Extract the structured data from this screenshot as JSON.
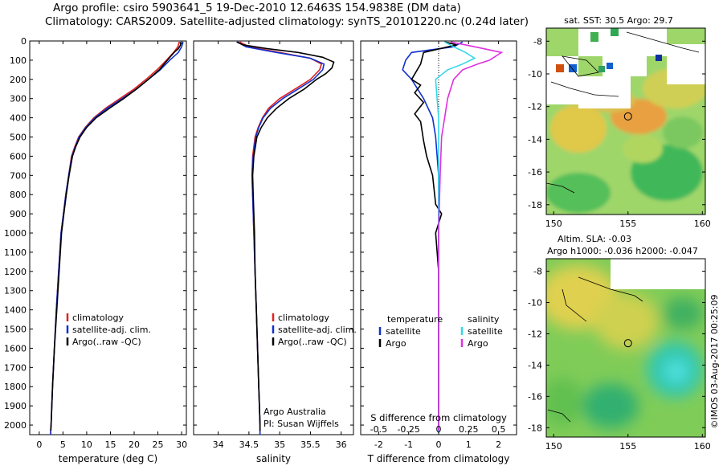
{
  "title": {
    "line1": "Argo profile: csiro 5903641_5 19-Dec-2010 12.6463S 154.9838E (DM data)",
    "line2": "Climatology: CARS2009. Satellite-adjusted climatology: synTS_20101220.nc (0.24d later)"
  },
  "colors": {
    "climatology": "#e02020",
    "satellite": "#1030d0",
    "argo": "#000000",
    "sal_satellite": "#30d8e8",
    "sal_argo": "#e030e0"
  },
  "chart_data": [
    {
      "type": "line",
      "name": "temperature",
      "xlabel": "temperature (deg C)",
      "ylabel": "",
      "xlim": [
        -2,
        31
      ],
      "ylim": [
        2050,
        0
      ],
      "xticks": [
        "0",
        "5",
        "10",
        "15",
        "20",
        "25",
        "30"
      ],
      "yticks": [
        "0",
        "100",
        "200",
        "300",
        "400",
        "500",
        "600",
        "700",
        "800",
        "900",
        "1000",
        "1100",
        "1200",
        "1300",
        "1400",
        "1500",
        "1600",
        "1700",
        "1800",
        "1900",
        "2000"
      ],
      "legend": [
        "climatology",
        "satellite-adj. clim.",
        "Argo(..raw -QC)"
      ],
      "series": [
        {
          "name": "climatology",
          "color": "climatology",
          "points": [
            [
              29.5,
              5
            ],
            [
              29.2,
              30
            ],
            [
              28.3,
              60
            ],
            [
              26.8,
              100
            ],
            [
              24.8,
              150
            ],
            [
              22.5,
              200
            ],
            [
              20,
              250
            ],
            [
              17,
              300
            ],
            [
              14,
              350
            ],
            [
              11.5,
              400
            ],
            [
              9.7,
              450
            ],
            [
              8.3,
              500
            ],
            [
              7.5,
              550
            ],
            [
              6.8,
              600
            ],
            [
              6.2,
              700
            ],
            [
              5.6,
              800
            ],
            [
              5.1,
              900
            ],
            [
              4.6,
              1000
            ],
            [
              4.1,
              1200
            ],
            [
              3.6,
              1400
            ],
            [
              3.2,
              1600
            ],
            [
              2.8,
              1800
            ],
            [
              2.5,
              2000
            ],
            [
              2.4,
              2050
            ]
          ]
        },
        {
          "name": "satellite-adj. clim.",
          "color": "satellite",
          "points": [
            [
              30.3,
              5
            ],
            [
              30,
              30
            ],
            [
              29.3,
              60
            ],
            [
              27.5,
              100
            ],
            [
              25.5,
              150
            ],
            [
              23,
              200
            ],
            [
              20.5,
              250
            ],
            [
              17.5,
              300
            ],
            [
              14.3,
              350
            ],
            [
              11.7,
              400
            ],
            [
              9.8,
              450
            ],
            [
              8.4,
              500
            ],
            [
              7.6,
              550
            ],
            [
              6.9,
              600
            ],
            [
              6.2,
              700
            ],
            [
              5.6,
              800
            ],
            [
              5.1,
              900
            ],
            [
              4.6,
              1000
            ],
            [
              4.1,
              1200
            ],
            [
              3.6,
              1400
            ],
            [
              3.2,
              1600
            ],
            [
              2.8,
              1800
            ],
            [
              2.5,
              2000
            ],
            [
              2.4,
              2050
            ]
          ]
        },
        {
          "name": "Argo(..raw -QC)",
          "color": "argo",
          "points": [
            [
              29.7,
              5
            ],
            [
              29.8,
              20
            ],
            [
              29.3,
              40
            ],
            [
              28.4,
              60
            ],
            [
              27,
              100
            ],
            [
              25.3,
              150
            ],
            [
              23,
              200
            ],
            [
              20.5,
              250
            ],
            [
              17.8,
              300
            ],
            [
              14.8,
              350
            ],
            [
              12,
              400
            ],
            [
              10,
              450
            ],
            [
              8.6,
              500
            ],
            [
              7.7,
              550
            ],
            [
              7,
              600
            ],
            [
              6.3,
              700
            ],
            [
              5.7,
              800
            ],
            [
              5.2,
              900
            ],
            [
              4.7,
              1000
            ],
            [
              4.2,
              1200
            ],
            [
              3.7,
              1400
            ],
            [
              3.2,
              1600
            ],
            [
              2.8,
              1800
            ],
            [
              2.5,
              2000
            ],
            [
              2.4,
              2030
            ]
          ]
        }
      ]
    },
    {
      "type": "line",
      "name": "salinity",
      "xlabel": "salinity",
      "xlim": [
        33.6,
        36.2
      ],
      "ylim": [
        2050,
        0
      ],
      "xticks": [
        "34",
        "34.5",
        "35",
        "35.5",
        "36"
      ],
      "legend": [
        "climatology",
        "satellite-adj. clim.",
        "Argo(..raw -QC)"
      ],
      "annotation": [
        "Argo Australia",
        "PI: Susan Wijffels"
      ],
      "series": [
        {
          "name": "climatology",
          "color": "climatology",
          "points": [
            [
              34.35,
              5
            ],
            [
              34.5,
              30
            ],
            [
              35.0,
              60
            ],
            [
              35.5,
              90
            ],
            [
              35.68,
              120
            ],
            [
              35.65,
              150
            ],
            [
              35.5,
              200
            ],
            [
              35.25,
              250
            ],
            [
              35.0,
              300
            ],
            [
              34.82,
              350
            ],
            [
              34.72,
              400
            ],
            [
              34.65,
              450
            ],
            [
              34.6,
              500
            ],
            [
              34.56,
              600
            ],
            [
              34.55,
              700
            ],
            [
              34.56,
              800
            ],
            [
              34.58,
              1000
            ],
            [
              34.6,
              1200
            ],
            [
              34.62,
              1400
            ],
            [
              34.64,
              1600
            ],
            [
              34.66,
              1800
            ],
            [
              34.68,
              2000
            ],
            [
              34.68,
              2050
            ]
          ]
        },
        {
          "name": "satellite-adj. clim.",
          "color": "satellite",
          "points": [
            [
              34.32,
              5
            ],
            [
              34.45,
              30
            ],
            [
              34.95,
              60
            ],
            [
              35.5,
              90
            ],
            [
              35.72,
              120
            ],
            [
              35.7,
              150
            ],
            [
              35.55,
              200
            ],
            [
              35.3,
              250
            ],
            [
              35.05,
              300
            ],
            [
              34.85,
              350
            ],
            [
              34.73,
              400
            ],
            [
              34.66,
              450
            ],
            [
              34.61,
              500
            ],
            [
              34.57,
              600
            ],
            [
              34.55,
              700
            ],
            [
              34.56,
              800
            ],
            [
              34.58,
              1000
            ],
            [
              34.6,
              1200
            ],
            [
              34.62,
              1400
            ],
            [
              34.64,
              1600
            ],
            [
              34.66,
              1800
            ],
            [
              34.68,
              2000
            ],
            [
              34.68,
              2050
            ]
          ]
        },
        {
          "name": "Argo(..raw -QC)",
          "color": "argo",
          "points": [
            [
              34.3,
              5
            ],
            [
              34.4,
              20
            ],
            [
              34.8,
              40
            ],
            [
              35.3,
              60
            ],
            [
              35.7,
              85
            ],
            [
              35.88,
              110
            ],
            [
              35.85,
              140
            ],
            [
              35.75,
              170
            ],
            [
              35.6,
              200
            ],
            [
              35.4,
              250
            ],
            [
              35.15,
              300
            ],
            [
              34.95,
              350
            ],
            [
              34.8,
              400
            ],
            [
              34.7,
              450
            ],
            [
              34.63,
              500
            ],
            [
              34.58,
              600
            ],
            [
              34.56,
              700
            ],
            [
              34.57,
              800
            ],
            [
              34.59,
              1000
            ],
            [
              34.6,
              1200
            ],
            [
              34.62,
              1400
            ],
            [
              34.64,
              1600
            ],
            [
              34.66,
              1800
            ],
            [
              34.68,
              2000
            ],
            [
              34.68,
              2030
            ]
          ]
        }
      ]
    },
    {
      "type": "line",
      "name": "difference-from-climatology",
      "xlabel": "T difference from climatology",
      "xlabel_top": "S difference from climatology",
      "xlim": [
        -2.6,
        2.6
      ],
      "ylim": [
        2050,
        0
      ],
      "xticks_T": [
        "-2",
        "-1",
        "0",
        "1",
        "2"
      ],
      "xticks_S": [
        "-0.5",
        "-0.25",
        "0",
        "0.25",
        "0.5"
      ],
      "legend_temperature": {
        "header": "temperature",
        "items": [
          "satellite",
          "Argo"
        ]
      },
      "legend_salinity": {
        "header": "salinity",
        "items": [
          "satellite",
          "Argo"
        ]
      },
      "series": [
        {
          "name": "temperature satellite",
          "color": "satellite",
          "points": [
            [
              0.8,
              5
            ],
            [
              0.5,
              30
            ],
            [
              -0.9,
              60
            ],
            [
              -1.1,
              100
            ],
            [
              -1.2,
              150
            ],
            [
              -0.9,
              200
            ],
            [
              -0.5,
              300
            ],
            [
              -0.2,
              400
            ],
            [
              -0.1,
              500
            ],
            [
              0,
              700
            ],
            [
              0,
              1000
            ],
            [
              0,
              2000
            ],
            [
              0,
              2040
            ]
          ]
        },
        {
          "name": "temperature Argo",
          "color": "argo",
          "points": [
            [
              0.2,
              5
            ],
            [
              0.6,
              20
            ],
            [
              -0.5,
              60
            ],
            [
              -0.6,
              120
            ],
            [
              -0.9,
              200
            ],
            [
              -0.6,
              230
            ],
            [
              -0.8,
              270
            ],
            [
              -0.5,
              320
            ],
            [
              -0.8,
              380
            ],
            [
              -0.6,
              420
            ],
            [
              -0.5,
              520
            ],
            [
              -0.4,
              600
            ],
            [
              -0.2,
              700
            ],
            [
              -0.1,
              850
            ],
            [
              0.1,
              900
            ],
            [
              -0.1,
              1000
            ],
            [
              0,
              1200
            ],
            [
              0,
              2000
            ],
            [
              0,
              2030
            ]
          ]
        },
        {
          "name": "salinity satellite",
          "color": "sal_satellite",
          "points": [
            [
              0.2,
              5
            ],
            [
              0.5,
              30
            ],
            [
              0.9,
              60
            ],
            [
              1.2,
              90
            ],
            [
              0.8,
              120
            ],
            [
              0.3,
              150
            ],
            [
              -0.1,
              200
            ],
            [
              -0.05,
              300
            ],
            [
              0,
              400
            ],
            [
              0,
              1000
            ],
            [
              0,
              2040
            ]
          ]
        },
        {
          "name": "salinity Argo",
          "color": "sal_argo",
          "points": [
            [
              0.4,
              5
            ],
            [
              1.2,
              30
            ],
            [
              2.1,
              60
            ],
            [
              1.7,
              100
            ],
            [
              1.3,
              120
            ],
            [
              0.8,
              150
            ],
            [
              0.5,
              200
            ],
            [
              0.3,
              300
            ],
            [
              0.2,
              400
            ],
            [
              0.1,
              500
            ],
            [
              0.05,
              700
            ],
            [
              0,
              1000
            ],
            [
              0,
              2030
            ]
          ]
        }
      ]
    },
    {
      "type": "heatmap",
      "name": "sst-map",
      "title": "sat. SST: 30.5 Argo: 29.7",
      "xlim": [
        149.5,
        160.2
      ],
      "ylim": [
        -18.6,
        -7.2
      ],
      "xticks": [
        "150",
        "155",
        "160"
      ],
      "yticks": [
        "-8",
        "-10",
        "-12",
        "-14",
        "-16",
        "-18"
      ],
      "marker": {
        "lon": 155,
        "lat": -12.6
      }
    },
    {
      "type": "heatmap",
      "name": "sla-map",
      "title_lines": [
        "Altim. SLA: -0.03",
        "Argo h1000: -0.036 h2000: -0.047"
      ],
      "xlim": [
        149.5,
        160.2
      ],
      "ylim": [
        -18.6,
        -7.2
      ],
      "xticks": [
        "150",
        "155",
        "160"
      ],
      "yticks": [
        "-8",
        "-10",
        "-12",
        "-14",
        "-16",
        "-18"
      ],
      "marker": {
        "lon": 155,
        "lat": -12.6
      }
    }
  ],
  "footer": "©IMOS 03-Aug-2017 00:25:09"
}
